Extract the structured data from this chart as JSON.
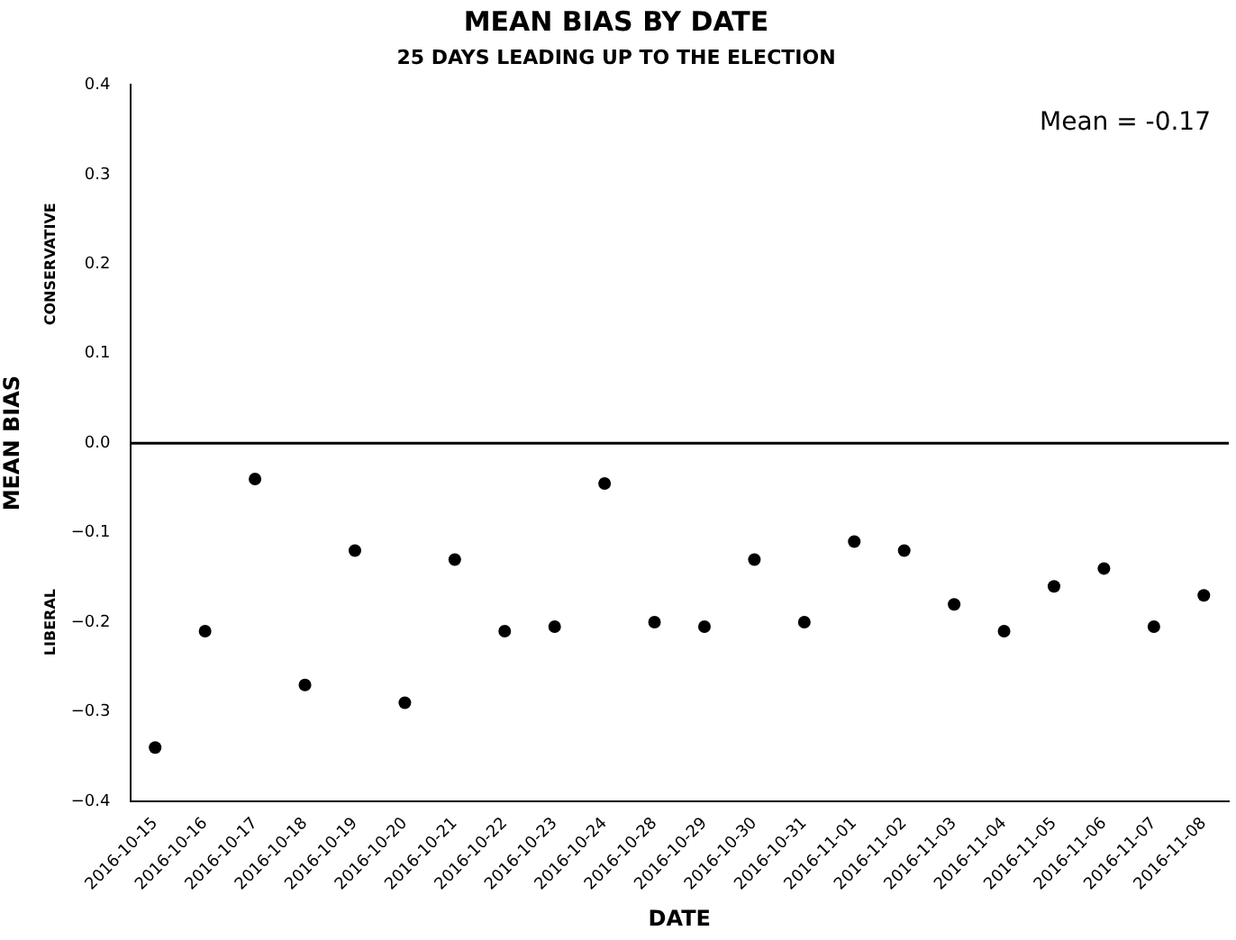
{
  "chart_data": {
    "type": "scatter",
    "title": "MEAN BIAS BY DATE",
    "subtitle": "25 DAYS LEADING UP TO THE ELECTION",
    "xlabel": "DATE",
    "ylabel": "MEAN BIAS",
    "categories": [
      "2016-10-15",
      "2016-10-16",
      "2016-10-17",
      "2016-10-18",
      "2016-10-19",
      "2016-10-20",
      "2016-10-21",
      "2016-10-22",
      "2016-10-23",
      "2016-10-24",
      "2016-10-28",
      "2016-10-29",
      "2016-10-30",
      "2016-10-31",
      "2016-11-01",
      "2016-11-02",
      "2016-11-03",
      "2016-11-04",
      "2016-11-05",
      "2016-11-06",
      "2016-11-07",
      "2016-11-08"
    ],
    "series": [
      {
        "color": "#000000",
        "values": [
          -0.34,
          -0.21,
          -0.04,
          -0.27,
          -0.12,
          -0.29,
          -0.13,
          -0.21,
          -0.205,
          -0.045,
          -0.2,
          -0.205,
          -0.13,
          -0.2,
          -0.11,
          -0.12,
          -0.18,
          -0.21,
          -0.16,
          -0.14,
          -0.205,
          -0.17
        ]
      }
    ],
    "ylim": [
      -0.4,
      0.4
    ],
    "yticks": [
      {
        "value": -0.4,
        "label": "−0.4"
      },
      {
        "value": -0.3,
        "label": "−0.3"
      },
      {
        "value": -0.2,
        "label": "−0.2"
      },
      {
        "value": -0.1,
        "label": "−0.1"
      },
      {
        "value": 0,
        "label": "0.0"
      },
      0.1,
      0.2,
      0.3,
      0.4
    ],
    "ref_lines": [
      {
        "axis": "y",
        "value": 0,
        "color": "#000000"
      }
    ],
    "annotations": [
      "Mean = -0.17",
      "CONSERVATIVE",
      "LIBERAL"
    ],
    "marker": "circle",
    "grid": false,
    "legend": false
  }
}
